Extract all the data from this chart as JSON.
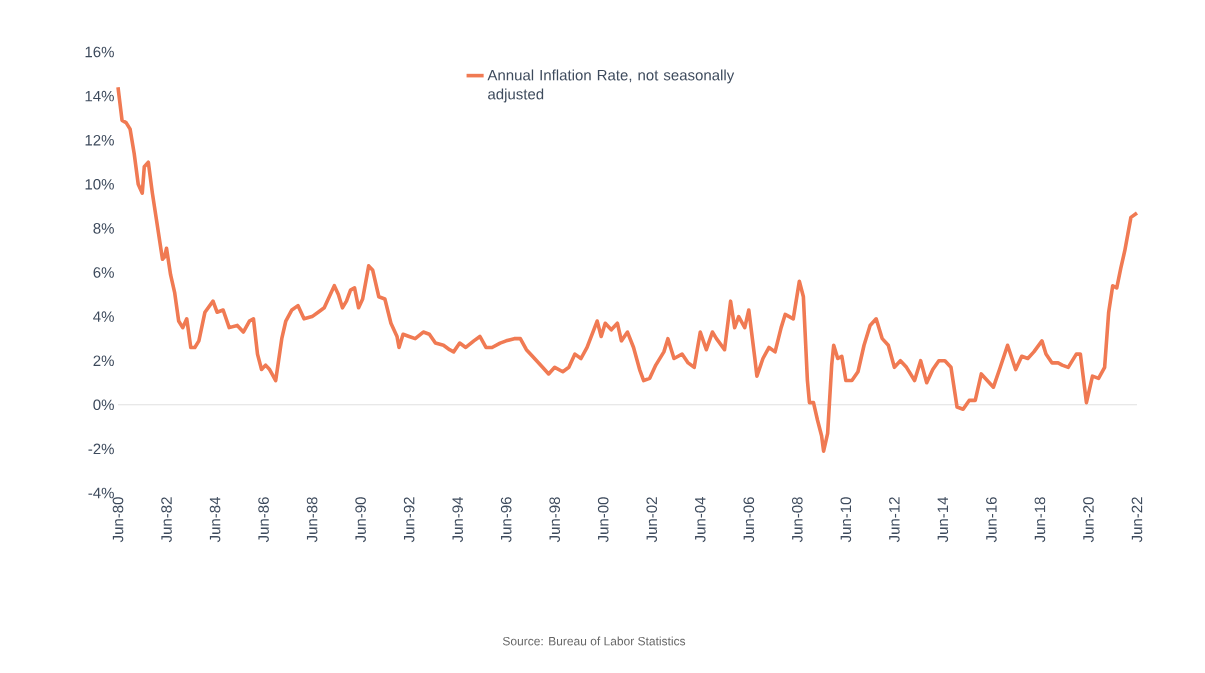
{
  "chart_data": {
    "type": "line",
    "x": [
      "1980-06",
      "1980-08",
      "1980-10",
      "1980-12",
      "1981-02",
      "1981-04",
      "1981-06",
      "1981-07",
      "1981-09",
      "1981-11",
      "1982-01",
      "1982-04",
      "1982-05",
      "1982-06",
      "1982-08",
      "1982-10",
      "1982-12",
      "1983-02",
      "1983-04",
      "1983-06",
      "1983-08",
      "1983-10",
      "1984-01",
      "1984-05",
      "1984-07",
      "1984-10",
      "1985-01",
      "1985-05",
      "1985-08",
      "1985-11",
      "1986-01",
      "1986-03",
      "1986-05",
      "1986-07",
      "1986-09",
      "1986-12",
      "1987-03",
      "1987-05",
      "1987-08",
      "1987-11",
      "1988-02",
      "1988-06",
      "1988-09",
      "1988-12",
      "1989-03",
      "1989-05",
      "1989-07",
      "1989-09",
      "1989-11",
      "1990-01",
      "1990-03",
      "1990-05",
      "1990-07",
      "1990-10",
      "1990-12",
      "1991-03",
      "1991-06",
      "1991-09",
      "1991-12",
      "1992-01",
      "1992-03",
      "1992-06",
      "1992-09",
      "1993-01",
      "1993-04",
      "1993-07",
      "1993-11",
      "1994-02",
      "1994-04",
      "1994-07",
      "1994-10",
      "1995-02",
      "1995-05",
      "1995-08",
      "1995-11",
      "1996-03",
      "1996-06",
      "1996-10",
      "1997-01",
      "1997-04",
      "1997-07",
      "1997-12",
      "1998-03",
      "1998-06",
      "1998-10",
      "1999-01",
      "1999-04",
      "1999-07",
      "1999-10",
      "2000-03",
      "2000-05",
      "2000-07",
      "2000-10",
      "2001-01",
      "2001-03",
      "2001-06",
      "2001-09",
      "2001-12",
      "2002-02",
      "2002-05",
      "2002-08",
      "2002-12",
      "2003-02",
      "2003-05",
      "2003-09",
      "2003-12",
      "2004-03",
      "2004-06",
      "2004-09",
      "2004-12",
      "2005-02",
      "2005-06",
      "2005-09",
      "2005-11",
      "2006-01",
      "2006-04",
      "2006-06",
      "2006-09",
      "2006-10",
      "2007-01",
      "2007-04",
      "2007-07",
      "2007-10",
      "2007-12",
      "2008-04",
      "2008-07",
      "2008-09",
      "2008-11",
      "2008-12",
      "2009-02",
      "2009-04",
      "2009-06",
      "2009-07",
      "2009-09",
      "2009-11",
      "2009-12",
      "2010-02",
      "2010-04",
      "2010-06",
      "2010-09",
      "2010-12",
      "2011-03",
      "2011-06",
      "2011-09",
      "2011-12",
      "2012-03",
      "2012-06",
      "2012-09",
      "2012-12",
      "2013-04",
      "2013-07",
      "2013-10",
      "2014-01",
      "2014-04",
      "2014-07",
      "2014-10",
      "2015-01",
      "2015-04",
      "2015-07",
      "2015-10",
      "2016-01",
      "2016-04",
      "2016-07",
      "2016-10",
      "2017-02",
      "2017-06",
      "2017-09",
      "2017-12",
      "2018-03",
      "2018-07",
      "2018-09",
      "2018-12",
      "2019-03",
      "2019-05",
      "2019-08",
      "2019-12",
      "2020-02",
      "2020-05",
      "2020-08",
      "2020-11",
      "2021-02",
      "2021-04",
      "2021-06",
      "2021-08",
      "2021-10",
      "2021-12",
      "2022-03",
      "2022-06"
    ],
    "series": [
      {
        "name": "Annual Inflation Rate, not seasonally adjusted",
        "color": "#f07a53",
        "values": [
          14.4,
          12.9,
          12.8,
          12.5,
          11.4,
          10.0,
          9.6,
          10.8,
          11.0,
          9.6,
          8.4,
          6.6,
          6.7,
          7.1,
          5.9,
          5.1,
          3.8,
          3.5,
          3.9,
          2.6,
          2.6,
          2.9,
          4.2,
          4.7,
          4.2,
          4.3,
          3.5,
          3.6,
          3.3,
          3.8,
          3.9,
          2.3,
          1.6,
          1.8,
          1.6,
          1.1,
          3.0,
          3.8,
          4.3,
          4.5,
          3.9,
          4.0,
          4.2,
          4.4,
          5.0,
          5.4,
          5.0,
          4.4,
          4.7,
          5.2,
          5.3,
          4.4,
          4.8,
          6.3,
          6.1,
          4.9,
          4.8,
          3.7,
          3.1,
          2.6,
          3.2,
          3.1,
          3.0,
          3.3,
          3.2,
          2.8,
          2.7,
          2.5,
          2.4,
          2.8,
          2.6,
          2.9,
          3.1,
          2.6,
          2.6,
          2.8,
          2.9,
          3.0,
          3.0,
          2.5,
          2.2,
          1.7,
          1.4,
          1.7,
          1.5,
          1.7,
          2.3,
          2.1,
          2.6,
          3.8,
          3.1,
          3.7,
          3.4,
          3.7,
          2.9,
          3.3,
          2.6,
          1.6,
          1.1,
          1.2,
          1.8,
          2.4,
          3.0,
          2.1,
          2.3,
          1.9,
          1.7,
          3.3,
          2.5,
          3.3,
          3.0,
          2.5,
          4.7,
          3.5,
          4.0,
          3.5,
          4.3,
          2.1,
          1.3,
          2.1,
          2.6,
          2.4,
          3.5,
          4.1,
          3.9,
          5.6,
          4.9,
          1.1,
          0.1,
          0.1,
          -0.7,
          -1.4,
          -2.1,
          -1.3,
          1.8,
          2.7,
          2.1,
          2.2,
          1.1,
          1.1,
          1.5,
          2.7,
          3.6,
          3.9,
          3.0,
          2.7,
          1.7,
          2.0,
          1.7,
          1.1,
          2.0,
          1.0,
          1.6,
          2.0,
          2.0,
          1.7,
          -0.1,
          -0.2,
          0.2,
          0.2,
          1.4,
          1.1,
          0.8,
          1.6,
          2.7,
          1.6,
          2.2,
          2.1,
          2.4,
          2.9,
          2.3,
          1.9,
          1.9,
          1.8,
          1.7,
          2.3,
          2.3,
          0.1,
          1.3,
          1.2,
          1.7,
          4.2,
          5.4,
          5.3,
          6.2,
          7.0,
          8.5,
          8.7
        ]
      }
    ],
    "xlim": [
      "1980-06",
      "2022-06"
    ],
    "xticks": [
      {
        "value": "1980-06",
        "label": "Jun-80"
      },
      {
        "value": "1982-06",
        "label": "Jun-82"
      },
      {
        "value": "1984-06",
        "label": "Jun-84"
      },
      {
        "value": "1986-06",
        "label": "Jun-86"
      },
      {
        "value": "1988-06",
        "label": "Jun-88"
      },
      {
        "value": "1990-06",
        "label": "Jun-90"
      },
      {
        "value": "1992-06",
        "label": "Jun-92"
      },
      {
        "value": "1994-06",
        "label": "Jun-94"
      },
      {
        "value": "1996-06",
        "label": "Jun-96"
      },
      {
        "value": "1998-06",
        "label": "Jun-98"
      },
      {
        "value": "2000-06",
        "label": "Jun-00"
      },
      {
        "value": "2002-06",
        "label": "Jun-02"
      },
      {
        "value": "2004-06",
        "label": "Jun-04"
      },
      {
        "value": "2006-06",
        "label": "Jun-06"
      },
      {
        "value": "2008-06",
        "label": "Jun-08"
      },
      {
        "value": "2010-06",
        "label": "Jun-10"
      },
      {
        "value": "2012-06",
        "label": "Jun-12"
      },
      {
        "value": "2014-06",
        "label": "Jun-14"
      },
      {
        "value": "2016-06",
        "label": "Jun-16"
      },
      {
        "value": "2018-06",
        "label": "Jun-18"
      },
      {
        "value": "2020-06",
        "label": "Jun-20"
      },
      {
        "value": "2022-06",
        "label": "Jun-22"
      }
    ],
    "ylim": [
      -4,
      16
    ],
    "yticks": [
      {
        "value": -4,
        "label": "-4%"
      },
      {
        "value": -2,
        "label": "-2%"
      },
      {
        "value": 0,
        "label": "0%"
      },
      {
        "value": 2,
        "label": "2%"
      },
      {
        "value": 4,
        "label": "4%"
      },
      {
        "value": 6,
        "label": "6%"
      },
      {
        "value": 8,
        "label": "8%"
      },
      {
        "value": 10,
        "label": "10%"
      },
      {
        "value": 12,
        "label": "12%"
      },
      {
        "value": 14,
        "label": "14%"
      },
      {
        "value": 16,
        "label": "16%"
      }
    ],
    "legend": "top",
    "line_style": "solid",
    "annotations": [
      "Source: Bureau of Labor Statistics"
    ]
  }
}
